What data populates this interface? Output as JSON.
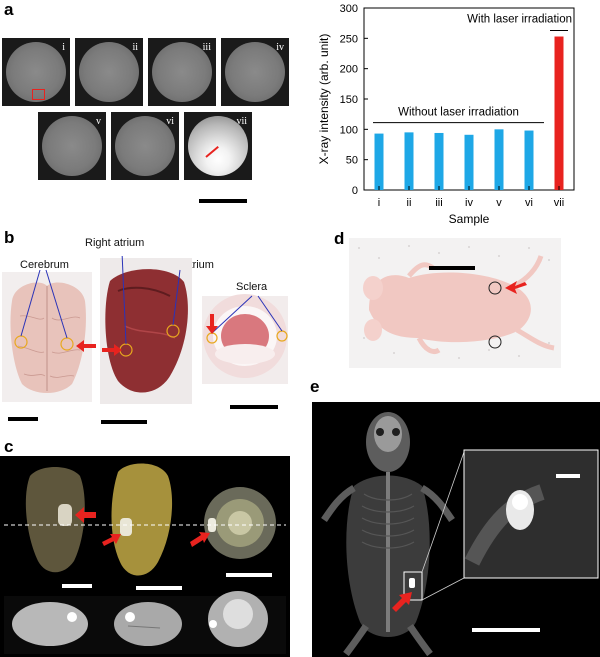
{
  "panels": {
    "a": "a",
    "b": "b",
    "c": "c",
    "d": "d",
    "e": "e"
  },
  "panel_a_tiles": [
    "i",
    "ii",
    "iii",
    "iv",
    "v",
    "vi",
    "vii"
  ],
  "panel_b_labels": {
    "cerebrum": "Cerebrum",
    "right_atrium": "Right atrium",
    "left_atrium": "Left atrium",
    "sclera": "Sclera"
  },
  "colors": {
    "bar_without": "#1ea7e6",
    "bar_with": "#e8231f",
    "arrow": "#e8231f",
    "circle": "#e8a81e"
  },
  "chart_data": {
    "type": "bar",
    "categories": [
      "i",
      "ii",
      "iii",
      "iv",
      "v",
      "vi",
      "vii"
    ],
    "values": [
      93,
      95,
      94,
      91,
      100,
      98,
      253
    ],
    "xlabel": "Sample",
    "ylabel": "X-ray intensity (arb. unit)",
    "ylim": [
      0,
      300
    ],
    "yticks": [
      0,
      50,
      100,
      150,
      200,
      250,
      300
    ],
    "grid": false,
    "annotations": {
      "without": "Without laser irradiation",
      "with": "With laser irradiation"
    }
  }
}
